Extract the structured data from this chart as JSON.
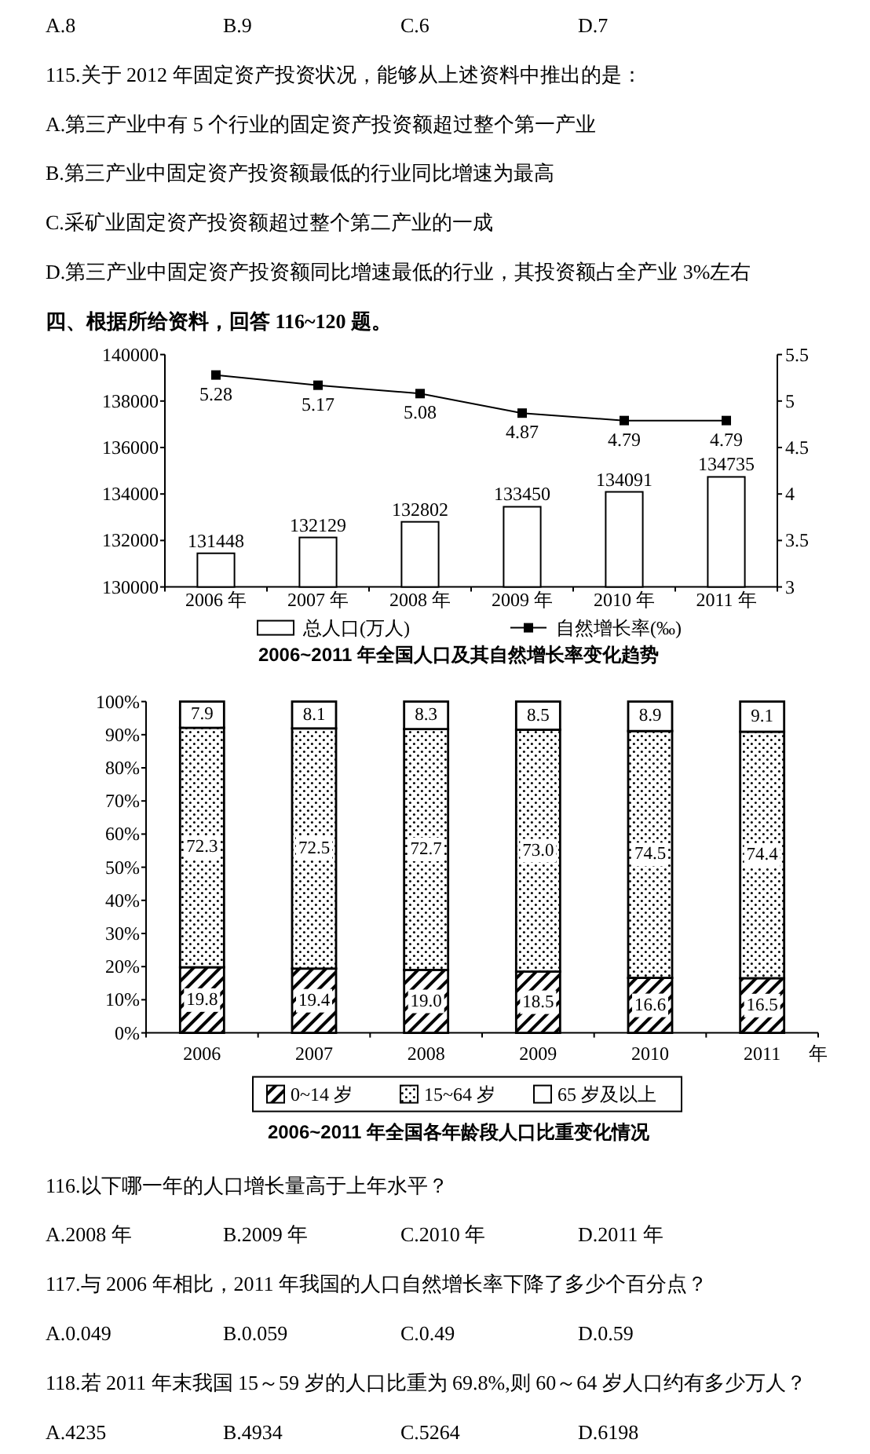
{
  "chart_data": [
    {
      "type": "other",
      "annotations": [
        "A.8",
        "B.9",
        "C.6",
        "D.7"
      ]
    },
    {
      "type": "other",
      "title": "115.关于 2012 年固定资产投资状况，能够从上述资料中推出的是：",
      "annotations": [
        "A.第三产业中有 5 个行业的固定资产投资额超过整个第一产业",
        "B.第三产业中固定资产投资额最低的行业同比增速为最高",
        "C.采矿业固定资产投资额超过整个第二产业的一成",
        "D.第三产业中固定资产投资额同比增速最低的行业，其投资额占全产业 3%左右"
      ]
    },
    {
      "type": "other",
      "title": "四、根据所给资料，回答 116~120 题。"
    },
    {
      "type": "bar",
      "title": "2006~2011 年全国人口及其自然增长率变化趋势",
      "categories": [
        "2006 年",
        "2007 年",
        "2008 年",
        "2009 年",
        "2010 年",
        "2011 年"
      ],
      "series": [
        {
          "name": "总人口(万人)",
          "type": "bar",
          "color": "#ffffff",
          "values": [
            131448,
            132129,
            132802,
            133450,
            134091,
            134735
          ]
        },
        {
          "name": "自然增长率(‰)",
          "type": "line",
          "axis": "y2",
          "color": "#000000",
          "values": [
            5.28,
            5.17,
            5.08,
            4.87,
            4.79,
            4.79
          ]
        }
      ],
      "ylim": [
        130000,
        140000
      ],
      "yticks": [
        130000,
        132000,
        134000,
        136000,
        138000,
        140000
      ],
      "y2lim": [
        3,
        5.5
      ],
      "y2ticks": [
        3,
        3.5,
        4,
        4.5,
        5,
        5.5
      ],
      "data_labels": true,
      "marker": "square",
      "legend": "bottom"
    },
    {
      "type": "bar",
      "stacked": true,
      "title": "2006~2011 年全国各年龄段人口比重变化情况",
      "xlabel": "年",
      "categories": [
        "2006",
        "2007",
        "2008",
        "2009",
        "2010",
        "2011"
      ],
      "series": [
        {
          "name": "0~14 岁",
          "color": "#000000",
          "values": [
            19.8,
            19.4,
            19.0,
            18.5,
            16.6,
            16.5
          ],
          "value_labels": [
            "19.8",
            "19.4",
            "19.0",
            "18.5",
            "16.6",
            "16.5"
          ]
        },
        {
          "name": "15~64 岁",
          "color": "#000000",
          "values": [
            72.3,
            72.5,
            72.7,
            73.0,
            74.5,
            74.4
          ],
          "value_labels": [
            "72.3",
            "72.5",
            "72.7",
            "73.0",
            "74.5",
            "74.4"
          ]
        },
        {
          "name": "65 岁及以上",
          "color": "#ffffff",
          "values": [
            7.9,
            8.1,
            8.3,
            8.5,
            8.9,
            9.1
          ],
          "value_labels": [
            "7.9",
            "8.1",
            "8.3",
            "8.5",
            "8.9",
            "9.1"
          ]
        }
      ],
      "ylim": [
        0,
        100
      ],
      "yticks": [
        {
          "value": 0,
          "label": "0%"
        },
        {
          "value": 10,
          "label": "10%"
        },
        {
          "value": 20,
          "label": "20%"
        },
        {
          "value": 30,
          "label": "30%"
        },
        {
          "value": 40,
          "label": "40%"
        },
        {
          "value": 50,
          "label": "50%"
        },
        {
          "value": 60,
          "label": "60%"
        },
        {
          "value": 70,
          "label": "70%"
        },
        {
          "value": 80,
          "label": "80%"
        },
        {
          "value": 90,
          "label": "90%"
        },
        {
          "value": 100,
          "label": "100%"
        }
      ],
      "legend": "bottom"
    },
    {
      "type": "other",
      "title": "116.以下哪一年的人口增长量高于上年水平？",
      "annotations": [
        "A.2008 年",
        "B.2009 年",
        "C.2010 年",
        "D.2011 年"
      ]
    },
    {
      "type": "other",
      "title": "117.与 2006 年相比，2011 年我国的人口自然增长率下降了多少个百分点？",
      "annotations": [
        "A.0.049",
        "B.0.059",
        "C.0.49",
        "D.0.59"
      ]
    },
    {
      "type": "other",
      "title": "118.若 2011 年末我国 15～59 岁的人口比重为 69.8%,则 60～64 岁人口约有多少万人？",
      "annotations": [
        "A.4235",
        "B.4934",
        "C.5264",
        "D.6198"
      ]
    }
  ]
}
